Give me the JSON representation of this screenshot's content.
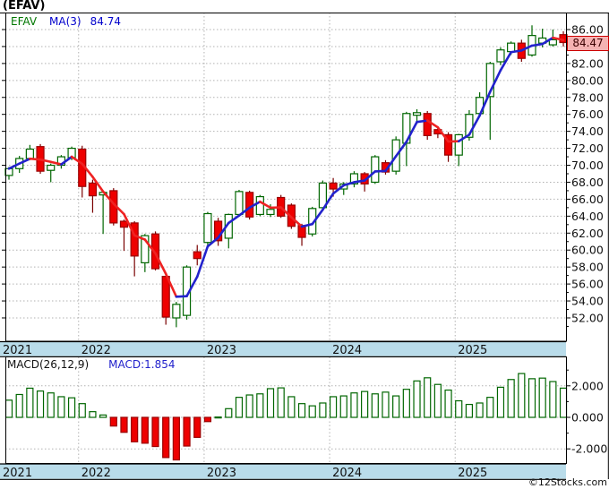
{
  "window": {
    "title": "(EFAV)",
    "watermark": "©12Stocks.com"
  },
  "legend": {
    "symbol": "EFAV",
    "ma_label": "MA(3)",
    "ma_value": "84.74"
  },
  "macd_legend": {
    "label": "MACD(26,12,9)",
    "value": "MACD:1.854"
  },
  "last_price": {
    "value": "84.47"
  },
  "colors": {
    "up": "#006600",
    "down_fill": "#ee0000",
    "down_border": "#990000",
    "down_wick": "#7a0000",
    "ma_up": "#2222cc",
    "ma_down": "#ee2222",
    "band": "#b9dcea",
    "grid": "#b2b2b2",
    "border": "#000000",
    "legend_symbol": "#007700",
    "legend_blue": "#0000cc",
    "macd_blue": "#2222cc",
    "last_price_bg": "#f5b2b2",
    "last_price_border": "#cc0000"
  },
  "chart_data": [
    {
      "type": "candlestick",
      "title": "(EFAV)",
      "series_label": "EFAV",
      "overlay": "MA(3)",
      "overlay_last": 84.74,
      "interval": "monthly",
      "ylim": [
        50.0,
        88.0
      ],
      "grid": "dotted",
      "y_ticks": [
        86,
        84,
        82,
        80,
        78,
        76,
        74,
        72,
        70,
        68,
        66,
        64,
        62,
        60,
        58,
        56,
        54,
        52
      ],
      "y_tick_labels": [
        "86.00",
        "84.00",
        "82.00",
        "80.00",
        "78.00",
        "76.00",
        "74.00",
        "72.00",
        "70.00",
        "68.00",
        "66.00",
        "64.00",
        "62.00",
        "60.00",
        "58.00",
        "56.00",
        "54.00",
        "52.00"
      ],
      "last_close": 84.47,
      "x_year_ticks": [
        {
          "label": "2021",
          "jan_index": -5
        },
        {
          "label": "2022",
          "jan_index": 7
        },
        {
          "label": "2023",
          "jan_index": 19
        },
        {
          "label": "2024",
          "jan_index": 31
        },
        {
          "label": "2025",
          "jan_index": 43
        }
      ],
      "ohlc": [
        [
          68.8,
          69.8,
          68.3,
          69.6
        ],
        [
          69.6,
          71.1,
          69.1,
          70.8
        ],
        [
          70.8,
          72.4,
          70.6,
          71.9
        ],
        [
          72.2,
          72.5,
          69.0,
          69.3
        ],
        [
          69.4,
          70.2,
          68.0,
          70.0
        ],
        [
          70.0,
          71.2,
          69.6,
          71.0
        ],
        [
          70.9,
          72.2,
          70.6,
          72.0
        ],
        [
          71.9,
          72.3,
          66.2,
          67.5
        ],
        [
          67.9,
          68.3,
          64.4,
          66.4
        ],
        [
          66.5,
          67.0,
          61.9,
          66.8
        ],
        [
          67.0,
          67.3,
          62.9,
          63.2
        ],
        [
          63.4,
          63.6,
          59.9,
          62.7
        ],
        [
          63.2,
          63.4,
          56.9,
          59.3
        ],
        [
          58.5,
          61.9,
          57.4,
          61.7
        ],
        [
          61.9,
          62.2,
          57.6,
          57.8
        ],
        [
          56.9,
          57.1,
          51.2,
          52.1
        ],
        [
          52.0,
          53.9,
          50.9,
          53.6
        ],
        [
          52.3,
          58.2,
          51.8,
          58.0
        ],
        [
          59.8,
          60.6,
          58.2,
          59.0
        ],
        [
          60.9,
          64.5,
          60.3,
          64.3
        ],
        [
          63.4,
          63.8,
          60.5,
          61.1
        ],
        [
          61.4,
          64.3,
          60.2,
          64.2
        ],
        [
          64.2,
          67.1,
          64.0,
          66.9
        ],
        [
          66.8,
          67.0,
          63.6,
          63.9
        ],
        [
          64.2,
          66.5,
          64.0,
          66.3
        ],
        [
          64.2,
          65.4,
          63.9,
          64.8
        ],
        [
          66.2,
          66.5,
          63.8,
          64.0
        ],
        [
          65.3,
          65.5,
          62.5,
          62.8
        ],
        [
          62.9,
          63.1,
          60.5,
          61.5
        ],
        [
          61.9,
          65.1,
          61.6,
          64.9
        ],
        [
          65.0,
          68.2,
          64.8,
          67.9
        ],
        [
          67.9,
          68.5,
          66.3,
          67.2
        ],
        [
          67.2,
          68.0,
          66.5,
          67.8
        ],
        [
          67.8,
          69.3,
          67.4,
          69.0
        ],
        [
          69.0,
          69.2,
          66.9,
          67.8
        ],
        [
          68.0,
          71.2,
          67.8,
          71.0
        ],
        [
          70.3,
          70.6,
          68.9,
          69.2
        ],
        [
          69.3,
          73.4,
          68.9,
          73.0
        ],
        [
          72.6,
          76.3,
          69.9,
          76.1
        ],
        [
          75.9,
          76.6,
          74.9,
          76.2
        ],
        [
          76.1,
          76.4,
          73.0,
          73.5
        ],
        [
          74.2,
          74.5,
          73.2,
          73.7
        ],
        [
          73.6,
          73.9,
          70.4,
          71.2
        ],
        [
          71.2,
          73.7,
          69.9,
          73.6
        ],
        [
          73.3,
          76.5,
          72.9,
          76.0
        ],
        [
          76.1,
          78.6,
          76.0,
          78.0
        ],
        [
          78.1,
          82.2,
          73.0,
          82.0
        ],
        [
          82.2,
          83.9,
          81.8,
          83.6
        ],
        [
          83.4,
          84.6,
          83.0,
          84.4
        ],
        [
          84.4,
          84.8,
          82.2,
          82.6
        ],
        [
          83.0,
          86.5,
          82.8,
          85.3
        ],
        [
          84.4,
          86.1,
          83.9,
          85.0
        ],
        [
          84.2,
          86.0,
          84.0,
          84.8
        ],
        [
          85.4,
          85.8,
          84.0,
          84.47
        ]
      ]
    },
    {
      "type": "bar",
      "title": "MACD(26,12,9)",
      "last_value": 1.854,
      "ylim": [
        -2.9,
        3.8
      ],
      "grid": "dotted",
      "y_ticks": [
        2,
        0,
        -2
      ],
      "y_tick_labels": [
        "2.000",
        "0.000",
        "-2.000"
      ],
      "values": [
        1.09,
        1.45,
        1.85,
        1.67,
        1.55,
        1.31,
        1.24,
        0.87,
        0.36,
        0.15,
        -0.55,
        -0.95,
        -1.55,
        -1.64,
        -1.85,
        -2.55,
        -2.7,
        -1.82,
        -1.27,
        -0.27,
        0.02,
        0.55,
        1.27,
        1.42,
        1.49,
        1.82,
        1.87,
        1.31,
        0.87,
        0.73,
        0.91,
        1.31,
        1.36,
        1.55,
        1.64,
        1.49,
        1.6,
        1.36,
        1.78,
        2.31,
        2.51,
        2.09,
        1.73,
        1.05,
        0.82,
        0.91,
        1.27,
        1.91,
        2.4,
        2.78,
        2.45,
        2.49,
        2.27,
        1.854
      ]
    }
  ]
}
